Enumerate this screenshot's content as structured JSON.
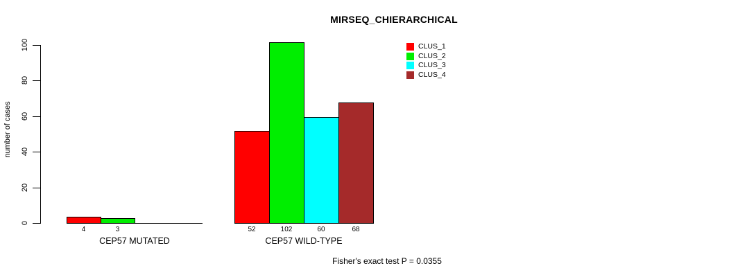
{
  "chart_data": {
    "type": "bar",
    "title": "MIRSEQ_CHIERARCHICAL",
    "ylabel": "number of cases",
    "xlabel": "",
    "ylim": [
      0,
      100
    ],
    "yticks": [
      0,
      20,
      40,
      60,
      80,
      100
    ],
    "grid": false,
    "legend_position": "top-right",
    "categories": [
      "CEP57 MUTATED",
      "CEP57 WILD-TYPE"
    ],
    "series": [
      {
        "name": "CLUS_1",
        "color": "#FF0000",
        "values": [
          4,
          52
        ]
      },
      {
        "name": "CLUS_2",
        "color": "#00EE00",
        "values": [
          3,
          102
        ]
      },
      {
        "name": "CLUS_3",
        "color": "#00FFFF",
        "values": [
          0,
          60
        ]
      },
      {
        "name": "CLUS_4",
        "color": "#A52A2A",
        "values": [
          0,
          68
        ]
      }
    ],
    "bar_value_labels": [
      [
        "4",
        "3",
        "",
        ""
      ],
      [
        "52",
        "102",
        "60",
        "68"
      ]
    ],
    "annotation": "Fisher's exact test P = 0.0355"
  },
  "legend": {
    "items": [
      {
        "label": "CLUS_1",
        "color": "#FF0000"
      },
      {
        "label": "CLUS_2",
        "color": "#00EE00"
      },
      {
        "label": "CLUS_3",
        "color": "#00FFFF"
      },
      {
        "label": "CLUS_4",
        "color": "#A52A2A"
      }
    ]
  }
}
